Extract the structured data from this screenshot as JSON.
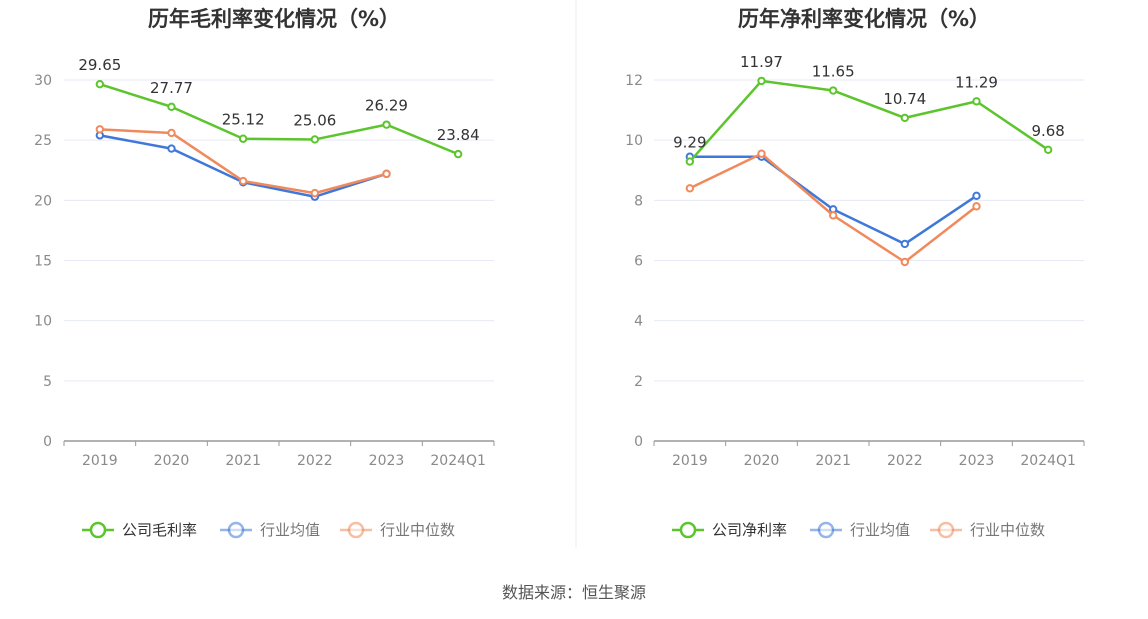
{
  "colors": {
    "company": "#5cc52e",
    "industry_avg": "#3f78d8",
    "industry_median": "#f08a5d",
    "grid": "#e6e9f3",
    "axis": "#999999"
  },
  "source_text": "数据来源：恒生聚源",
  "chart_data": [
    {
      "type": "line",
      "title": "历年毛利率变化情况（%）",
      "categories": [
        "2019",
        "2020",
        "2021",
        "2022",
        "2023",
        "2024Q1"
      ],
      "ylim": [
        0,
        30
      ],
      "yticks": [
        "0",
        "5",
        "10",
        "15",
        "20",
        "25",
        "30"
      ],
      "grid": true,
      "legend_position": "bottom",
      "series": [
        {
          "name": "公司毛利率",
          "values": [
            29.65,
            27.77,
            25.12,
            25.06,
            26.29,
            23.84
          ],
          "labels": [
            "29.65",
            "27.77",
            "25.12",
            "25.06",
            "26.29",
            "23.84"
          ]
        },
        {
          "name": "行业均值",
          "values": [
            25.4,
            24.3,
            21.5,
            20.3,
            22.2,
            null
          ]
        },
        {
          "name": "行业中位数",
          "values": [
            25.9,
            25.6,
            21.6,
            20.6,
            22.2,
            null
          ]
        }
      ]
    },
    {
      "type": "line",
      "title": "历年净利率变化情况（%）",
      "categories": [
        "2019",
        "2020",
        "2021",
        "2022",
        "2023",
        "2024Q1"
      ],
      "ylim": [
        0,
        12
      ],
      "yticks": [
        "0",
        "2",
        "4",
        "6",
        "8",
        "10",
        "12"
      ],
      "grid": true,
      "legend_position": "bottom",
      "series": [
        {
          "name": "公司净利率",
          "values": [
            9.29,
            11.97,
            11.65,
            10.74,
            11.29,
            9.68
          ],
          "labels": [
            "9.29",
            "11.97",
            "11.65",
            "10.74",
            "11.29",
            "9.68"
          ]
        },
        {
          "name": "行业均值",
          "values": [
            9.45,
            9.45,
            7.7,
            6.55,
            8.15,
            null
          ]
        },
        {
          "name": "行业中位数",
          "values": [
            8.4,
            9.55,
            7.5,
            5.95,
            7.8,
            null
          ]
        }
      ]
    }
  ]
}
